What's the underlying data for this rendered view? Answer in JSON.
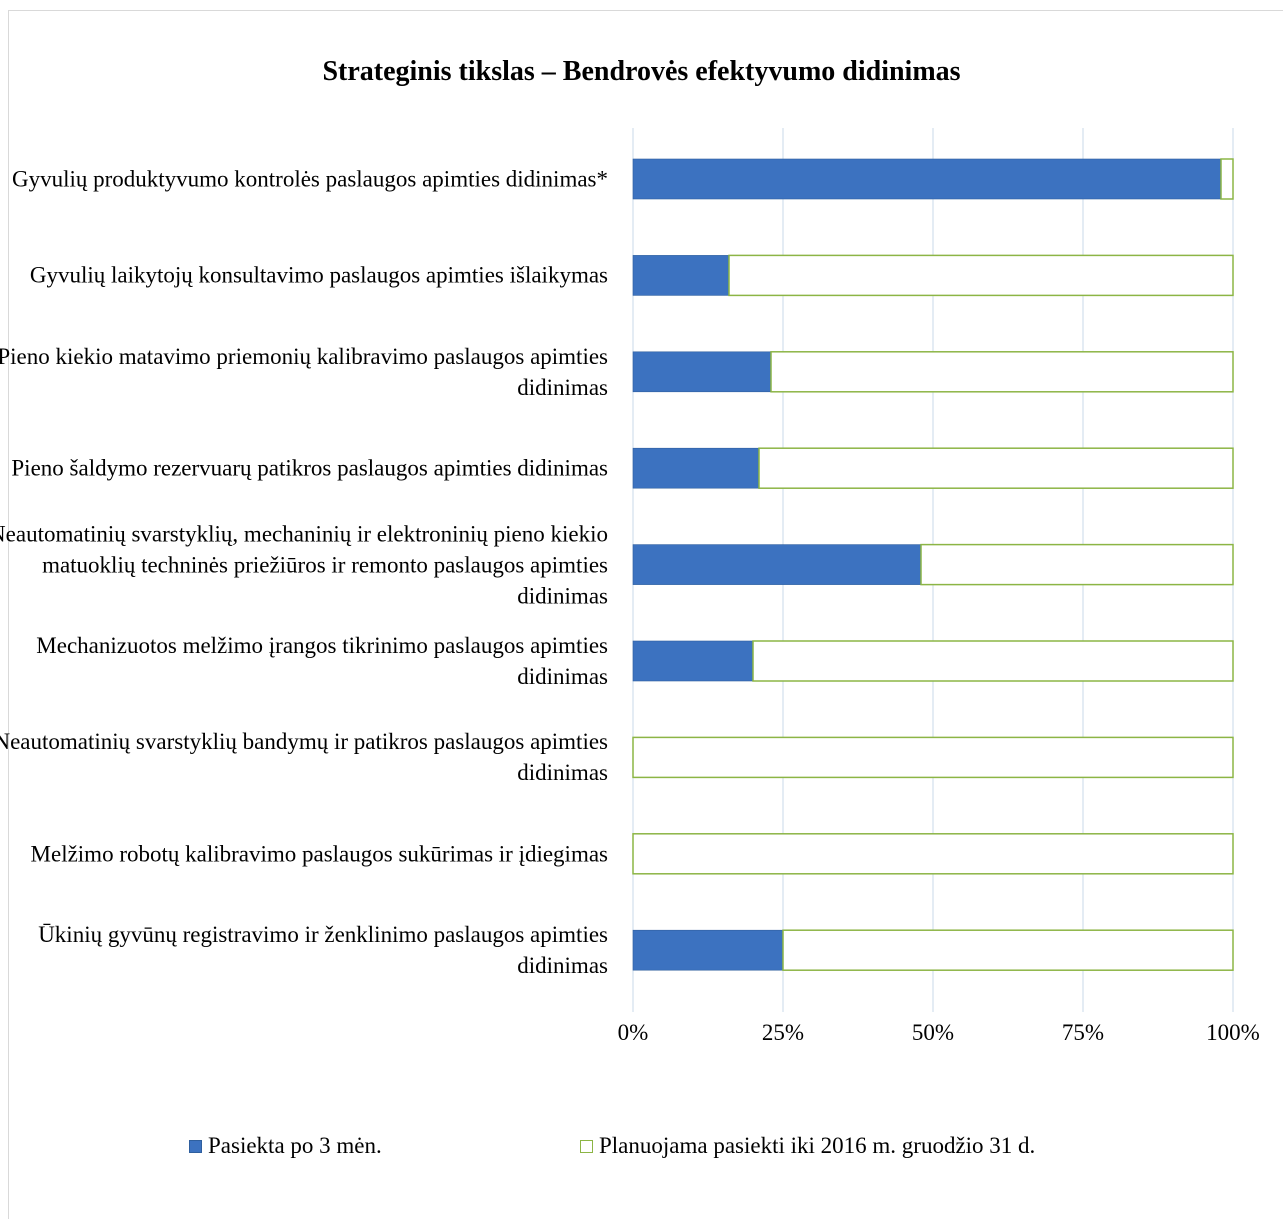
{
  "chart_data": {
    "type": "bar",
    "orientation": "horizontal",
    "stacked": "percent",
    "title": "Strateginis tikslas – Bendrovės efektyvumo didinimas",
    "categories": [
      "Gyvulių produktyvumo kontrolės paslaugos apimties didinimas*",
      "Gyvulių laikytojų konsultavimo paslaugos apimties išlaikymas",
      "Pieno kiekio matavimo priemonių kalibravimo paslaugos apimties didinimas",
      "Pieno šaldymo rezervuarų patikros paslaugos apimties didinimas",
      "Neautomatinių svarstyklių, mechaninių ir elektroninių pieno kiekio matuoklių techninės priežiūros ir remonto paslaugos apimties didinimas",
      "Mechanizuotos melžimo įrangos tikrinimo paslaugos apimties didinimas",
      "Neautomatinių svarstyklių bandymų ir patikros paslaugos apimties didinimas",
      "Melžimo robotų kalibravimo paslaugos sukūrimas ir įdiegimas",
      "Ūkinių gyvūnų registravimo ir ženklinimo paslaugos apimties didinimas"
    ],
    "series": [
      {
        "name": "Pasiekta po 3 mėn.",
        "values": [
          98,
          16,
          23,
          21,
          48,
          20,
          0,
          0,
          25
        ],
        "color": "#3c72c0"
      },
      {
        "name": "Planuojama pasiekti iki 2016 m. gruodžio 31 d.",
        "values": [
          2,
          84,
          77,
          79,
          52,
          80,
          100,
          100,
          75
        ],
        "color": "#ffffff",
        "border": "#8cb545"
      }
    ],
    "xlim": [
      0,
      100
    ],
    "xticks": [
      "0%",
      "25%",
      "50%",
      "75%",
      "100%"
    ],
    "grid": true,
    "legend_position": "bottom"
  }
}
